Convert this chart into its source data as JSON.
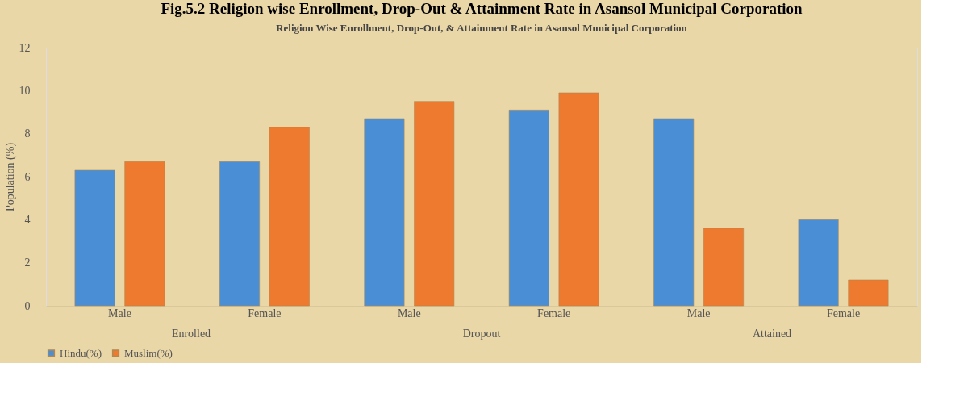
{
  "chart_data": {
    "type": "bar",
    "title": "Fig.5.2 Religion wise Enrollment, Drop-Out & Attainment Rate in Asansol Municipal Corporation",
    "subtitle": "Religion Wise Enrollment, Drop-Out, & Attainment Rate in Asansol Municipal Corporation",
    "ylabel": "Population (%)",
    "categories": [
      "Male",
      "Female",
      "Male",
      "Female",
      "Male",
      "Female"
    ],
    "annotations": [
      "Enrolled",
      "Dropout",
      "Attained"
    ],
    "series": [
      {
        "name": "Hindu(%)",
        "color": "#4a8fd6",
        "values": [
          6.3,
          6.7,
          8.7,
          9.1,
          8.7,
          4.0
        ]
      },
      {
        "name": "Muslim(%)",
        "color": "#ee7a30",
        "values": [
          6.7,
          8.3,
          9.5,
          9.9,
          3.6,
          1.2
        ]
      }
    ],
    "ylim": [
      0,
      12
    ],
    "yticks": [
      0,
      2,
      4,
      6,
      8,
      10,
      12
    ],
    "grid": false,
    "legend": "bottom"
  }
}
